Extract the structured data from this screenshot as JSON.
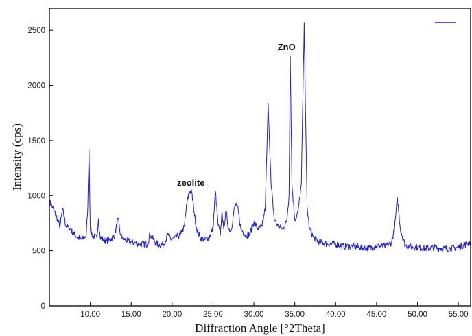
{
  "chart_data": {
    "type": "line",
    "title": "",
    "xlabel": "Diffraction Angle [°2Theta]",
    "ylabel": "Intensity (cps)",
    "xlim": [
      5,
      56.5
    ],
    "ylim": [
      0,
      2700
    ],
    "x_ticks": [
      10,
      15,
      20,
      25,
      30,
      35,
      40,
      45,
      50,
      55
    ],
    "x_tick_labels": [
      "10.00",
      "15.00",
      "20.00",
      "25.00",
      "30.00",
      "35.00",
      "40.00",
      "45.00",
      "50.00",
      "55.00"
    ],
    "y_ticks": [
      0,
      500,
      1000,
      1500,
      2000,
      2500
    ],
    "y_tick_labels": [
      "0",
      "500",
      "1000",
      "1500",
      "2000",
      "2500"
    ],
    "grid": false,
    "legend": "top-right",
    "series": [
      {
        "color": "#1f1fd6",
        "x": [
          5.0,
          5.6,
          6.0,
          6.3,
          6.6,
          7.0,
          7.5,
          8.0,
          8.5,
          9.0,
          9.5,
          9.7,
          9.85,
          10.0,
          10.3,
          10.8,
          11.0,
          11.2,
          11.6,
          12.0,
          12.5,
          13.0,
          13.4,
          13.7,
          14.2,
          15.0,
          16.0,
          17.0,
          17.3,
          18.0,
          18.5,
          19.0,
          19.5,
          19.9,
          20.3,
          21.0,
          21.5,
          21.8,
          22.1,
          22.4,
          22.7,
          23.0,
          23.4,
          24.0,
          24.5,
          25.0,
          25.3,
          25.6,
          25.9,
          26.1,
          26.3,
          26.6,
          26.9,
          27.2,
          27.7,
          28.0,
          28.4,
          29.0,
          29.5,
          30.0,
          30.5,
          31.0,
          31.4,
          31.75,
          32.1,
          32.5,
          33.0,
          33.5,
          34.0,
          34.3,
          34.45,
          34.65,
          35.0,
          35.4,
          35.8,
          36.15,
          36.3,
          36.5,
          36.8,
          37.3,
          38.0,
          39.0,
          40.0,
          41.0,
          42.0,
          43.0,
          44.0,
          45.0,
          46.0,
          46.8,
          47.2,
          47.55,
          47.9,
          48.5,
          49.0,
          50.0,
          51.0,
          52.0,
          53.0,
          54.0,
          55.0,
          56.0,
          56.5
        ],
        "y": [
          950,
          860,
          780,
          720,
          880,
          730,
          700,
          650,
          620,
          600,
          640,
          900,
          1420,
          700,
          630,
          620,
          790,
          620,
          600,
          590,
          600,
          650,
          790,
          640,
          600,
          580,
          560,
          560,
          650,
          570,
          550,
          560,
          650,
          600,
          620,
          640,
          720,
          930,
          1040,
          1030,
          850,
          700,
          620,
          600,
          620,
          700,
          1040,
          750,
          640,
          860,
          700,
          860,
          700,
          680,
          920,
          900,
          700,
          640,
          650,
          760,
          700,
          720,
          900,
          1840,
          1100,
          780,
          720,
          700,
          760,
          1000,
          2270,
          1100,
          780,
          850,
          1100,
          2570,
          1800,
          900,
          700,
          620,
          580,
          560,
          560,
          540,
          540,
          530,
          520,
          540,
          540,
          570,
          700,
          980,
          700,
          550,
          540,
          530,
          520,
          530,
          520,
          520,
          530,
          560,
          580
        ]
      }
    ],
    "annotations": [
      {
        "text": "zeolite",
        "x": 22.3,
        "y": 1090
      },
      {
        "text": "ZnO",
        "x": 34.0,
        "y": 2320
      }
    ]
  }
}
